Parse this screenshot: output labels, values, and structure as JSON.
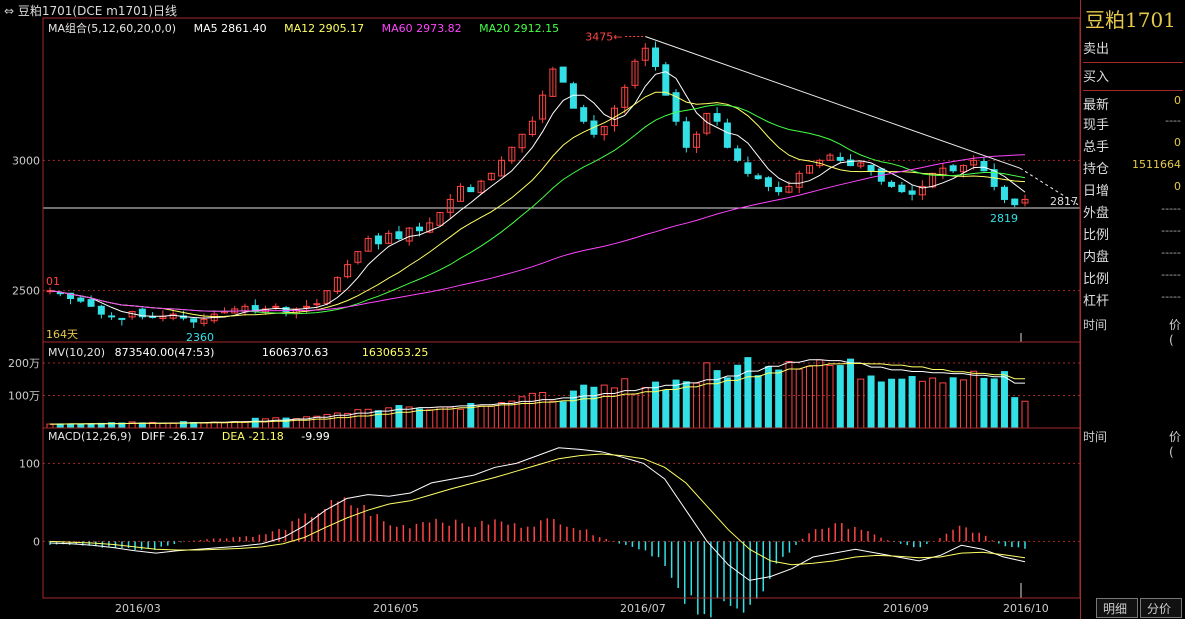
{
  "window": {
    "title": "豆粕1701(DCE m1701)日线"
  },
  "legends": {
    "ma": {
      "label": "MA组合(5,12,60,20,0,0)",
      "ma5": "MA5 2861.40",
      "ma12": "MA12 2905.17",
      "ma60": "MA60 2973.82",
      "ma20": "MA20 2912.15"
    },
    "mv": {
      "label": "MV(10,20)",
      "v1": "873540.00(47:53)",
      "v2": "1606370.63",
      "v3": "1630653.25"
    },
    "macd": {
      "label": "MACD(12,26,9)",
      "diff": "DIFF -26.17",
      "dea": "DEA -21.18",
      "macd": "-9.99"
    }
  },
  "colors": {
    "up": "#ff4444",
    "down": "#33e0e6",
    "ma5": "#ffffff",
    "ma12": "#ffff66",
    "ma60": "#ff44ff",
    "ma20": "#44ff44",
    "grid": "#a52a2a"
  },
  "annotations": {
    "high": "3475",
    "low": "2360",
    "last_low": "2819",
    "right_price": "2817",
    "days": "164天",
    "left_mark": "01"
  },
  "chart_data": [
    {
      "type": "candlestick",
      "title": "豆粕1701(DCE m1701)日线",
      "y_ticks": [
        "3000",
        "2500"
      ],
      "ylim": [
        2330,
        3500
      ],
      "x_ticks": [
        "2016/03",
        "2016/05",
        "2016/07",
        "2016/09",
        "2016/10"
      ],
      "high_label": 3475,
      "low_label": 2360,
      "recent_low": 2819,
      "close_line": 2817,
      "close_trend": [
        2500,
        2490,
        2470,
        2460,
        2440,
        2410,
        2400,
        2390,
        2420,
        2400,
        2400,
        2400,
        2410,
        2395,
        2380,
        2390,
        2410,
        2420,
        2430,
        2440,
        2420,
        2430,
        2440,
        2420,
        2430,
        2440,
        2450,
        2500,
        2550,
        2600,
        2650,
        2700,
        2680,
        2720,
        2700,
        2740,
        2730,
        2760,
        2800,
        2850,
        2900,
        2880,
        2920,
        2950,
        3000,
        3050,
        3100,
        3150,
        3250,
        3350,
        3300,
        3200,
        3150,
        3100,
        3130,
        3200,
        3280,
        3380,
        3430,
        3360,
        3250,
        3150,
        3050,
        3100,
        3180,
        3150,
        3050,
        3000,
        2950,
        2930,
        2900,
        2880,
        2900,
        2950,
        2980,
        3000,
        3020,
        3000,
        2980,
        2990,
        2960,
        2920,
        2900,
        2880,
        2870,
        2900,
        2950,
        2970,
        2960,
        2980,
        3000,
        2960,
        2900,
        2850,
        2830,
        2850
      ],
      "series": [
        {
          "name": "MA5",
          "value": 2861.4
        },
        {
          "name": "MA12",
          "value": 2905.17
        },
        {
          "name": "MA60",
          "value": 2973.82
        },
        {
          "name": "MA20",
          "value": 2912.15
        }
      ]
    },
    {
      "type": "bar",
      "title": "MV(10,20)",
      "y_ticks": [
        "200万",
        "100万"
      ],
      "ylim": [
        0,
        2400000
      ],
      "values_trend": [
        120000,
        130000,
        150000,
        140000,
        160000,
        150000,
        170000,
        180000,
        200000,
        210000,
        250000,
        300000,
        350000,
        420000,
        500000,
        560000,
        600000,
        650000,
        700000,
        650000,
        720000,
        800000,
        850000,
        900000,
        950000,
        1000000,
        1100000,
        1200000,
        1300000,
        1350000,
        1400000,
        1500000,
        1700000,
        1800000,
        2000000,
        2100000,
        2200000,
        2100000,
        1900000,
        1800000,
        1700000,
        1750000,
        1700000,
        1650000,
        1600000,
        1550000,
        1500000,
        873540
      ],
      "series": [
        {
          "name": "MV10",
          "value": 1606370.63
        },
        {
          "name": "MV20",
          "value": 1630653.25
        }
      ]
    },
    {
      "type": "line",
      "title": "MACD(12,26,9)",
      "y_ticks": [
        "100",
        "0"
      ],
      "ylim": [
        -70,
        130
      ],
      "series": [
        {
          "name": "DIFF",
          "value": -26.17,
          "trend": [
            -2,
            -3,
            -5,
            -8,
            -12,
            -15,
            -12,
            -10,
            -8,
            -6,
            -3,
            5,
            20,
            40,
            55,
            60,
            58,
            62,
            75,
            80,
            85,
            95,
            100,
            110,
            120,
            118,
            115,
            108,
            100,
            80,
            40,
            0,
            -30,
            -50,
            -45,
            -35,
            -20,
            -15,
            -10,
            -15,
            -20,
            -25,
            -18,
            -5,
            -10,
            -20,
            -26
          ]
        },
        {
          "name": "DEA",
          "value": -21.18,
          "trend": [
            0,
            -1,
            -2,
            -4,
            -7,
            -10,
            -11,
            -11,
            -10,
            -9,
            -7,
            -3,
            5,
            18,
            30,
            40,
            48,
            52,
            60,
            68,
            75,
            82,
            90,
            98,
            106,
            110,
            112,
            110,
            106,
            95,
            75,
            45,
            15,
            -10,
            -25,
            -30,
            -28,
            -25,
            -20,
            -18,
            -19,
            -21,
            -20,
            -15,
            -14,
            -17,
            -21
          ]
        },
        {
          "name": "MACD",
          "value": -9.99
        }
      ]
    }
  ],
  "side_panel": {
    "title": "豆粕1701",
    "rows": [
      {
        "label": "卖出",
        "value": ""
      },
      {
        "label": "买入",
        "value": ""
      },
      {
        "label": "最新",
        "value": "0"
      },
      {
        "label": "现手",
        "value": "----"
      },
      {
        "label": "总手",
        "value": "0"
      },
      {
        "label": "持仓",
        "value": "1511664"
      },
      {
        "label": "日增",
        "value": "0"
      },
      {
        "label": "外盘",
        "value": "-----"
      },
      {
        "label": "比例",
        "value": "-----"
      },
      {
        "label": "内盘",
        "value": "-----"
      },
      {
        "label": "比例",
        "value": "-----"
      },
      {
        "label": "杠杆",
        "value": "-----"
      }
    ],
    "sec1": {
      "time": "时间",
      "price": "价("
    },
    "sec2": {
      "time": "时间",
      "price": "价("
    },
    "tab_detail": "明细",
    "tab_split": "分价"
  }
}
